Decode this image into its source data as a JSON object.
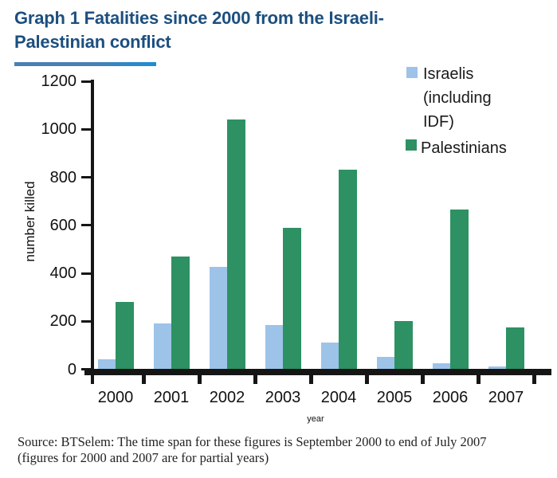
{
  "title_lines": [
    "Graph 1 Fatalities since 2000 from the Israeli-",
    "Palestinian conflict"
  ],
  "legend": {
    "israelis_lines": [
      "Israelis",
      "(including",
      "IDF)"
    ],
    "palestinians_label": "Palestinians"
  },
  "source": {
    "line1": "Source: BTSelem: The time span for these figures is September 2000 to end of July 2007",
    "line2": "(figures for 2000 and 2007 are for partial years)"
  },
  "colors": {
    "israelis_bar": "#9DC3E8",
    "palestinians_bar": "#2D9163",
    "title_text": "#1C4F7F",
    "title_underline": "#2E86C1",
    "axis": "#151515"
  },
  "chart_data": {
    "type": "bar",
    "title": "Graph 1 Fatalities since 2000 from the Israeli-Palestinian conflict",
    "categories": [
      "2000",
      "2001",
      "2002",
      "2003",
      "2004",
      "2005",
      "2006",
      "2007"
    ],
    "series": [
      {
        "name": "Israelis (including IDF)",
        "color": "#9DC3E8",
        "values": [
          40,
          190,
          425,
          185,
          110,
          50,
          25,
          10
        ]
      },
      {
        "name": "Palestinians",
        "color": "#2D9163",
        "values": [
          280,
          470,
          1040,
          590,
          830,
          200,
          665,
          175
        ]
      }
    ],
    "xlabel": "year",
    "ylabel": "number killed",
    "ylim": [
      0,
      1200
    ],
    "yticks": [
      0,
      200,
      400,
      600,
      800,
      1000,
      1200
    ],
    "grid": false,
    "legend_position": "top-right"
  }
}
